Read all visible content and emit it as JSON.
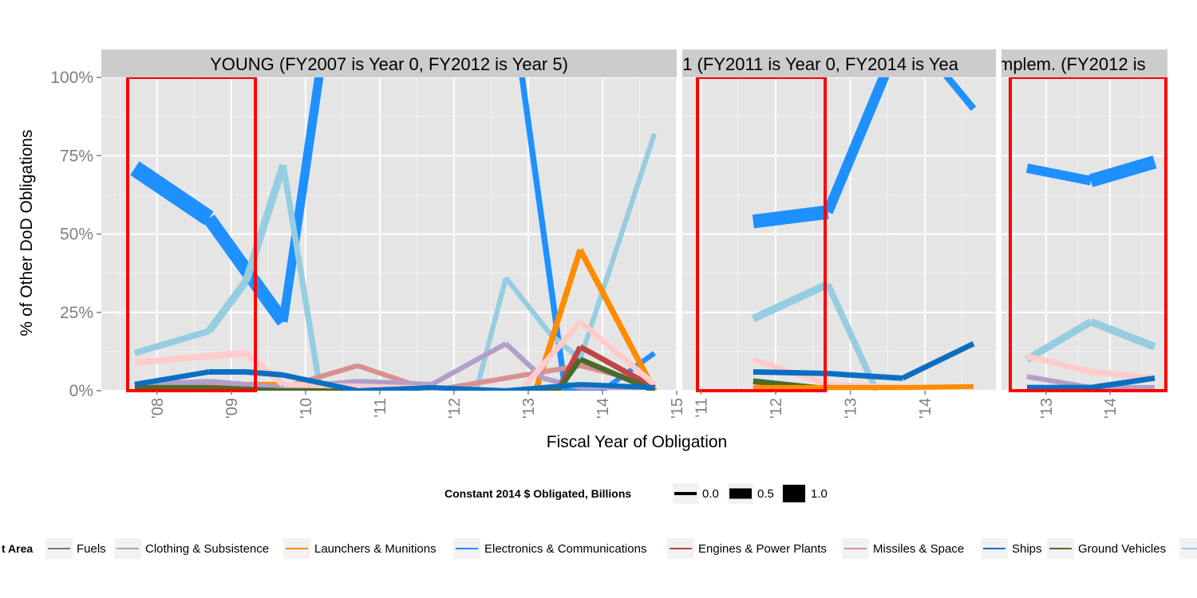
{
  "chart_data": {
    "type": "line",
    "title": "",
    "xlabel": "Fiscal Year of Obligation",
    "ylabel": "% of  Other DoD  Obligations",
    "y_ticks": [
      "0%",
      "25%",
      "50%",
      "75%",
      "100%"
    ],
    "ylim": [
      0,
      100
    ],
    "grid": true,
    "legend_placement": "bottom",
    "size_legend": {
      "title": "Constant 2014 $ Obligated, Billions",
      "entries": [
        "0.0",
        "0.5",
        "1.0"
      ]
    },
    "color_legend": {
      "title": "t Area",
      "entries": [
        {
          "name": "Fuels",
          "color": "#777777"
        },
        {
          "name": "Clothing & Subsistence",
          "color": "#b39ec9"
        },
        {
          "name": "Launchers & Munitions",
          "color": "#ff8c00"
        },
        {
          "name": "Electronics & Communications",
          "color": "#1e90ff"
        },
        {
          "name": "Engines & Power Plants",
          "color": "#c04545"
        },
        {
          "name": "Missiles & Space",
          "color": "#d99090"
        },
        {
          "name": "Ships",
          "color": "#0a6fc2"
        },
        {
          "name": "Ground Vehicles",
          "color": "#4a6b2a"
        },
        {
          "name": "",
          "color": "#96cde0"
        }
      ]
    },
    "panels": [
      {
        "strip": "YOUNG (FY2007 is Year 0, FY2012 is Year 5)",
        "x_ticks": [
          "'08",
          "'09",
          "'10",
          "'11",
          "'12",
          "'13",
          "'14",
          "'15"
        ],
        "xlim": [
          2007.25,
          2015.0
        ],
        "series": [
          {
            "key": "Electronics & Communications",
            "color": "#1e90ff",
            "points": [
              [
                2007.7,
                71,
                1.7
              ],
              [
                2008.7,
                55,
                1.5
              ],
              [
                2009.7,
                22,
                1.0
              ],
              [
                2010.2,
                103,
                0.5
              ],
              [
                2012.9,
                103,
                0.4
              ],
              [
                2013.5,
                0,
                0.4
              ],
              [
                2014.0,
                0,
                0.3
              ],
              [
                2014.7,
                12,
                0.3
              ]
            ]
          },
          {
            "key": "",
            "color": "#96cde0",
            "points": [
              [
                2007.7,
                12,
                0.4
              ],
              [
                2008.7,
                19,
                0.5
              ],
              [
                2009.2,
                35,
                0.7
              ],
              [
                2009.7,
                72,
                0.5
              ],
              [
                2010.2,
                0,
                0.3
              ],
              [
                2012.3,
                0,
                0.3
              ],
              [
                2012.7,
                36,
                0.3
              ],
              [
                2013.3,
                18,
                0.3
              ],
              [
                2013.7,
                10,
                0.3
              ],
              [
                2014.7,
                82,
                0.3
              ]
            ]
          },
          {
            "key": "Launchers & Munitions",
            "color": "#ff8c00",
            "points": [
              [
                2007.7,
                1,
                0.3
              ],
              [
                2008.7,
                2,
                0.3
              ],
              [
                2009.7,
                2,
                0.3
              ],
              [
                2010.7,
                0,
                0.3
              ],
              [
                2013.1,
                0,
                0.3
              ],
              [
                2013.7,
                45,
                0.5
              ],
              [
                2014.7,
                0,
                0.3
              ]
            ]
          },
          {
            "key": "Missiles & Space",
            "color": "#d99090",
            "points": [
              [
                2007.7,
                2,
                0.3
              ],
              [
                2008.7,
                2,
                0.3
              ],
              [
                2009.7,
                1,
                0.3
              ],
              [
                2010.7,
                8,
                0.3
              ],
              [
                2011.7,
                0,
                0.3
              ],
              [
                2012.7,
                4,
                0.3
              ],
              [
                2013.7,
                8,
                0.3
              ],
              [
                2014.7,
                2,
                0.3
              ]
            ]
          },
          {
            "key": "Clothing & Subsistence",
            "color": "#b39ec9",
            "points": [
              [
                2007.7,
                2,
                0.3
              ],
              [
                2008.7,
                3,
                0.3
              ],
              [
                2009.7,
                1,
                0.3
              ],
              [
                2010.7,
                3,
                0.3
              ],
              [
                2011.7,
                2,
                0.3
              ],
              [
                2012.7,
                15,
                0.3
              ],
              [
                2013.2,
                4,
                0.3
              ],
              [
                2013.7,
                1,
                0.3
              ],
              [
                2014.7,
                1,
                0.3
              ]
            ]
          },
          {
            "key": "Engines & Power Plants",
            "color": "#c04545",
            "points": [
              [
                2013.4,
                0,
                0.3
              ],
              [
                2013.7,
                14,
                0.4
              ],
              [
                2014.7,
                1,
                0.3
              ]
            ]
          },
          {
            "key": "Ground Vehicles",
            "color": "#4a6b2a",
            "points": [
              [
                2007.7,
                1,
                0.3
              ],
              [
                2008.7,
                1,
                0.3
              ],
              [
                2009.7,
                0,
                0.3
              ],
              [
                2010.7,
                0,
                0.3
              ],
              [
                2013.4,
                0,
                0.3
              ],
              [
                2013.7,
                10,
                0.4
              ],
              [
                2014.7,
                0,
                0.3
              ]
            ]
          },
          {
            "key": "",
            "color": "#ffcccc",
            "points": [
              [
                2007.7,
                9,
                0.4
              ],
              [
                2008.7,
                11,
                0.5
              ],
              [
                2009.2,
                12,
                0.5
              ],
              [
                2009.7,
                2,
                0.4
              ],
              [
                2012.9,
                0,
                0.3
              ],
              [
                2013.7,
                22,
                0.5
              ],
              [
                2014.7,
                2,
                0.3
              ]
            ]
          },
          {
            "key": "Ships",
            "color": "#0a6fc2",
            "points": [
              [
                2007.7,
                2,
                0.3
              ],
              [
                2008.7,
                6,
                0.35
              ],
              [
                2009.2,
                6,
                0.35
              ],
              [
                2009.7,
                5,
                0.35
              ],
              [
                2010.7,
                0,
                0.3
              ],
              [
                2011.7,
                1,
                0.3
              ],
              [
                2012.7,
                0,
                0.3
              ],
              [
                2013.7,
                2,
                0.3
              ],
              [
                2014.7,
                1,
                0.3
              ]
            ]
          }
        ]
      },
      {
        "strip": "'1 (FY2011 is Year 0, FY2014 is Yea",
        "x_ticks": [
          "'11",
          "'12",
          "'13",
          "'14"
        ],
        "xlim": [
          2010.75,
          2014.95
        ],
        "series": [
          {
            "key": "Electronics & Communications",
            "color": "#1e90ff",
            "points": [
              [
                2011.7,
                54,
                1.3
              ],
              [
                2012.7,
                57,
                1.3
              ],
              [
                2013.5,
                103,
                0.5
              ],
              [
                2014.2,
                103,
                0.5
              ],
              [
                2014.65,
                90,
                0.5
              ]
            ]
          },
          {
            "key": "",
            "color": "#96cde0",
            "points": [
              [
                2011.7,
                23,
                0.6
              ],
              [
                2012.7,
                34,
                0.6
              ],
              [
                2013.35,
                0,
                0.3
              ]
            ]
          },
          {
            "key": "",
            "color": "#ffcccc",
            "points": [
              [
                2011.7,
                10,
                0.4
              ],
              [
                2012.7,
                2,
                0.4
              ],
              [
                2013.7,
                1,
                0.3
              ]
            ]
          },
          {
            "key": "Ground Vehicles",
            "color": "#4a6b2a",
            "points": [
              [
                2011.7,
                3,
                0.5
              ],
              [
                2012.7,
                0.5,
                0.3
              ]
            ]
          },
          {
            "key": "Launchers & Munitions",
            "color": "#ff8c00",
            "points": [
              [
                2011.7,
                1,
                0.3
              ],
              [
                2012.7,
                1,
                0.3
              ],
              [
                2013.7,
                1,
                0.3
              ],
              [
                2014.65,
                1.3,
                0.3
              ]
            ]
          },
          {
            "key": "Ships",
            "color": "#0a6fc2",
            "points": [
              [
                2011.7,
                6,
                0.35
              ],
              [
                2012.7,
                5.5,
                0.35
              ],
              [
                2013.0,
                5,
                0.35
              ],
              [
                2013.7,
                4,
                0.35
              ],
              [
                2014.65,
                15,
                0.35
              ]
            ]
          }
        ]
      },
      {
        "strip": "mplem. (FY2012 is",
        "x_ticks": [
          "'13",
          "'14"
        ],
        "xlim": [
          2012.3,
          2014.9
        ],
        "series": [
          {
            "key": "Electronics & Communications",
            "color": "#1e90ff",
            "points": [
              [
                2012.7,
                71,
                0.7
              ],
              [
                2013.7,
                67,
                0.9
              ],
              [
                2014.7,
                73,
                1.6
              ]
            ]
          },
          {
            "key": "",
            "color": "#96cde0",
            "points": [
              [
                2012.7,
                10,
                0.5
              ],
              [
                2013.7,
                22,
                0.6
              ],
              [
                2014.7,
                14,
                0.6
              ]
            ]
          },
          {
            "key": "",
            "color": "#ffcccc",
            "points": [
              [
                2012.7,
                11,
                0.4
              ],
              [
                2013.7,
                6,
                0.4
              ],
              [
                2014.7,
                4,
                0.4
              ]
            ]
          },
          {
            "key": "Clothing & Subsistence",
            "color": "#b39ec9",
            "points": [
              [
                2012.7,
                4.5,
                0.3
              ],
              [
                2013.7,
                1,
                0.3
              ],
              [
                2014.7,
                1,
                0.3
              ]
            ]
          },
          {
            "key": "Ships",
            "color": "#0a6fc2",
            "points": [
              [
                2012.7,
                1,
                0.35
              ],
              [
                2013.7,
                1,
                0.35
              ],
              [
                2014.7,
                4,
                0.35
              ]
            ]
          }
        ]
      }
    ]
  }
}
